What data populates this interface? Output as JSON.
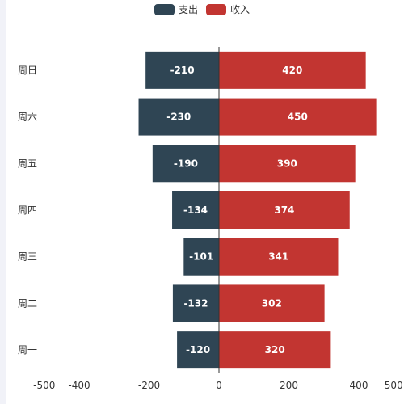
{
  "legend": [
    {
      "name": "支出",
      "color": "#2f4554"
    },
    {
      "name": "收入",
      "color": "#c23531"
    }
  ],
  "chart_data": {
    "type": "bar",
    "orientation": "horizontal",
    "categories": [
      "周一",
      "周二",
      "周三",
      "周四",
      "周五",
      "周六",
      "周日"
    ],
    "series": [
      {
        "name": "支出",
        "values": [
          -120,
          -132,
          -101,
          -134,
          -190,
          -230,
          -210
        ],
        "color": "#2f4554"
      },
      {
        "name": "收入",
        "values": [
          320,
          302,
          341,
          374,
          390,
          450,
          420
        ],
        "color": "#c23531"
      }
    ],
    "xlim": [
      -500,
      500
    ],
    "xticks": [
      -500,
      -400,
      -200,
      0,
      200,
      400,
      500
    ],
    "grid": false,
    "legend_position": "top"
  }
}
